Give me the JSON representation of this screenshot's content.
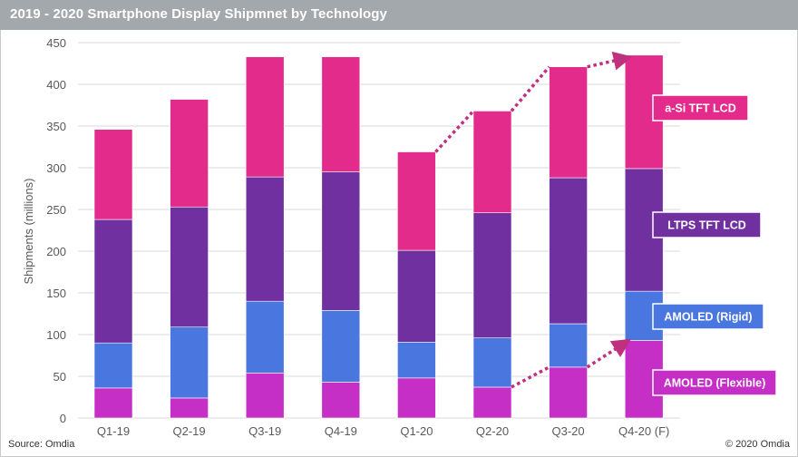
{
  "header": {
    "title": "2019 - 2020 Smartphone Display Shipmnet by  Technology"
  },
  "footer": {
    "source": "Source: Omdia",
    "copyright": "© 2020 Omdia"
  },
  "chart_data": {
    "type": "bar",
    "stacked": true,
    "title": "2019 - 2020 Smartphone Display Shipmnet by  Technology",
    "xlabel": "",
    "ylabel": "Shipments (millions)",
    "ylim": [
      0,
      450
    ],
    "yticks": [
      0,
      50,
      100,
      150,
      200,
      250,
      300,
      350,
      400,
      450
    ],
    "grid": true,
    "legend_placement": "right (inline labels beside last bar)",
    "categories": [
      "Q1-19",
      "Q2-19",
      "Q3-19",
      "Q4-19",
      "Q1-20",
      "Q2-20",
      "Q3-20",
      "Q4-20 (F)"
    ],
    "series": [
      {
        "name": "AMOLED (Flexible)",
        "color": "#c62fc6",
        "values": [
          36,
          24,
          54,
          43,
          48,
          37,
          61,
          93
        ]
      },
      {
        "name": "AMOLED (Rigid)",
        "color": "#4a76e0",
        "values": [
          54,
          85,
          86,
          86,
          43,
          59,
          52,
          59
        ]
      },
      {
        "name": "LTPS TFT LCD",
        "color": "#7030a0",
        "values": [
          148,
          144,
          149,
          166,
          110,
          150,
          175,
          147
        ]
      },
      {
        "name": "a-Si  TFT LCD",
        "color": "#e32b8c",
        "values": [
          108,
          129,
          144,
          138,
          118,
          122,
          133,
          136
        ]
      }
    ],
    "totals": [
      346,
      382,
      433,
      433,
      319,
      368,
      421,
      435
    ],
    "annotations": [
      {
        "type": "dotted-arrow",
        "color": "#c0307f",
        "from": {
          "category": "Q1-20",
          "value": 319
        },
        "to": {
          "category": "Q4-20 (F)",
          "value": 435
        },
        "description": "Total shipments trend from Q1-20 to Q4-20 (F)"
      },
      {
        "type": "dotted-arrow",
        "color": "#c0307f",
        "from": {
          "category": "Q2-20",
          "value": 37
        },
        "to": {
          "category": "Q4-20 (F)",
          "value": 93
        },
        "description": "AMOLED (Flexible) trend from Q2-20 to Q4-20 (F)"
      }
    ]
  }
}
